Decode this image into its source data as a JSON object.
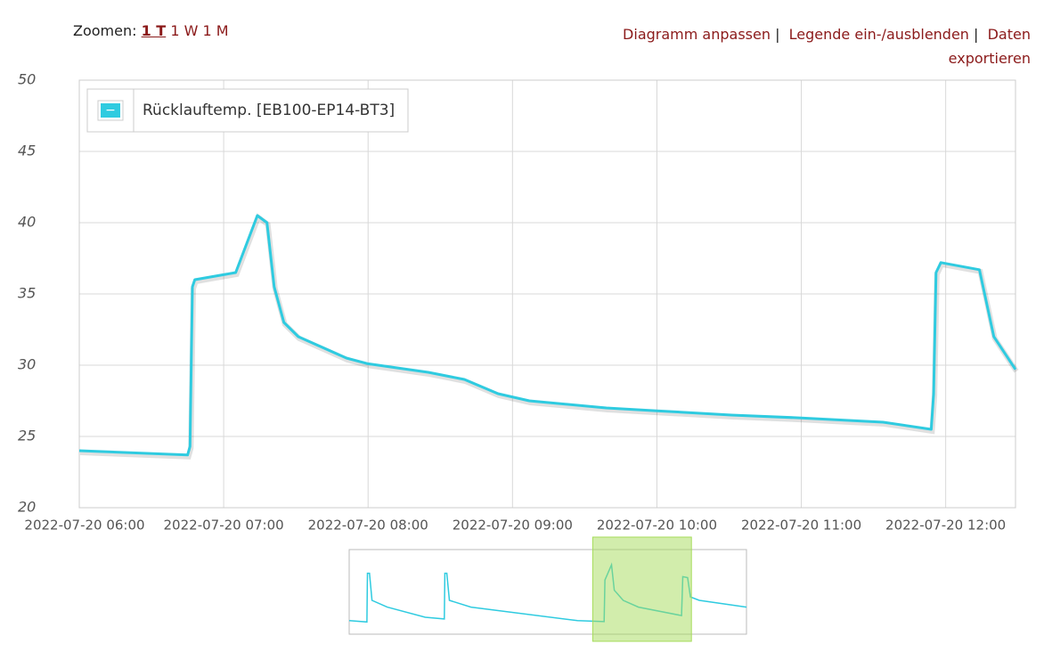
{
  "toolbar": {
    "zoom_label": "Zoomen:",
    "zoom_options": [
      "1 T",
      "1 W",
      "1 M"
    ],
    "links": [
      "Diagramm anpassen",
      "Legende ein-/ausblenden",
      "Daten exportieren"
    ],
    "separator": "|"
  },
  "chart_data": [
    {
      "type": "line",
      "legend_icon": "−",
      "x": [
        "2022-07-20 06:00",
        "2022-07-20 06:45",
        "2022-07-20 06:46",
        "2022-07-20 06:47",
        "2022-07-20 06:48",
        "2022-07-20 07:05",
        "2022-07-20 07:14",
        "2022-07-20 07:18",
        "2022-07-20 07:21",
        "2022-07-20 07:25",
        "2022-07-20 07:31",
        "2022-07-20 07:51",
        "2022-07-20 08:00",
        "2022-07-20 08:25",
        "2022-07-20 08:40",
        "2022-07-20 08:54",
        "2022-07-20 09:07",
        "2022-07-20 09:39",
        "2022-07-20 10:00",
        "2022-07-20 10:31",
        "2022-07-20 11:00",
        "2022-07-20 11:34",
        "2022-07-20 11:54",
        "2022-07-20 11:55",
        "2022-07-20 11:56",
        "2022-07-20 11:58",
        "2022-07-20 12:14",
        "2022-07-20 12:20",
        "2022-07-20 12:29"
      ],
      "series": [
        {
          "name": "Rücklauftemp. [EB100-EP14-BT3]",
          "color": "#2fcbe0",
          "values": [
            24.0,
            23.7,
            24.3,
            35.5,
            36.0,
            36.5,
            40.5,
            40.0,
            35.5,
            33.0,
            32.0,
            30.5,
            30.1,
            29.5,
            29.0,
            28.0,
            27.5,
            27.0,
            26.8,
            26.5,
            26.3,
            26.0,
            25.5,
            28.0,
            36.5,
            37.2,
            36.7,
            32.0,
            29.7
          ]
        }
      ],
      "xlim": [
        "2022-07-20 06:00",
        "2022-07-20 12:29"
      ],
      "xticks": [
        "2022-07-20 06:00",
        "2022-07-20 07:00",
        "2022-07-20 08:00",
        "2022-07-20 09:00",
        "2022-07-20 10:00",
        "2022-07-20 11:00",
        "2022-07-20 12:00"
      ],
      "ylim": [
        20,
        50
      ],
      "yticks": [
        20,
        25,
        30,
        35,
        40,
        45,
        50
      ],
      "grid": true,
      "legend": "top-left"
    },
    {
      "type": "navigator",
      "color": "#2fcbe0",
      "window_color": "#a6dc5a",
      "x": [
        "2022-07-19 14:00",
        "2022-07-19 15:10",
        "2022-07-19 15:12",
        "2022-07-19 15:20",
        "2022-07-19 15:30",
        "2022-07-19 16:30",
        "2022-07-19 19:00",
        "2022-07-19 20:15",
        "2022-07-19 20:17",
        "2022-07-19 20:25",
        "2022-07-19 20:35",
        "2022-07-19 22:00",
        "2022-07-20 05:00",
        "2022-07-20 06:45",
        "2022-07-20 06:48",
        "2022-07-20 07:14",
        "2022-07-20 07:25",
        "2022-07-20 08:00",
        "2022-07-20 09:00",
        "2022-07-20 11:50",
        "2022-07-20 11:55",
        "2022-07-20 12:14",
        "2022-07-20 12:25",
        "2022-07-20 13:00",
        "2022-07-20 16:06"
      ],
      "values": [
        24.0,
        23.6,
        38,
        38,
        30,
        28,
        25,
        24.5,
        38,
        38,
        30,
        28,
        24,
        23.7,
        36,
        40.5,
        33,
        30,
        28,
        25.5,
        37,
        36.7,
        31,
        30,
        28
      ],
      "xlim": [
        "2022-07-19 14:00",
        "2022-07-20 16:06"
      ],
      "ylim": [
        20,
        45
      ]
    }
  ]
}
